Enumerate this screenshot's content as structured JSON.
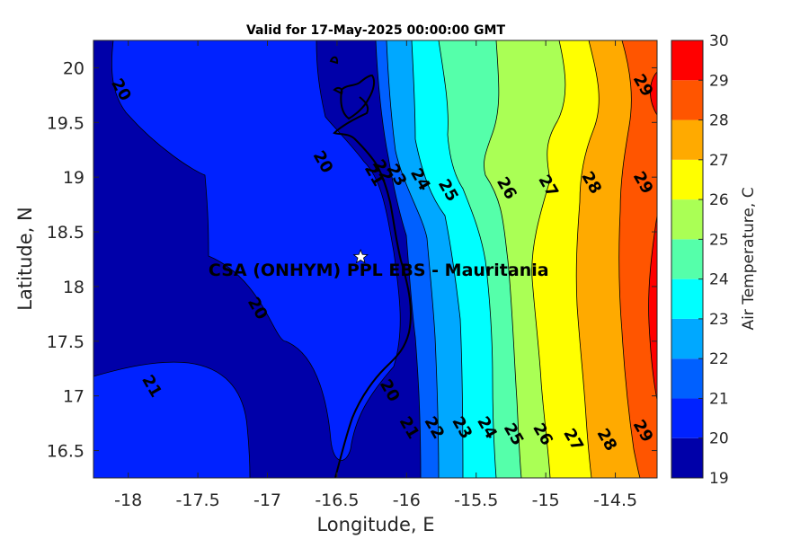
{
  "chart_data": {
    "type": "contour-map",
    "title": "Valid for 17-May-2025 00:00:00 GMT",
    "xlabel": "Longitude, E",
    "ylabel": "Latitude, N",
    "xlim": [
      -18.25,
      -14.2
    ],
    "ylim": [
      16.25,
      20.25
    ],
    "x_ticks": [
      "-18",
      "-17.5",
      "-17",
      "-16.5",
      "-16",
      "-15.5",
      "-15",
      "-14.5"
    ],
    "y_ticks": [
      "20",
      "19.5",
      "19",
      "18.5",
      "18",
      "17.5",
      "17",
      "16.5"
    ],
    "colorbar": {
      "label": "Air Temperature, C",
      "levels": [
        19,
        20,
        21,
        22,
        23,
        24,
        25,
        26,
        27,
        28,
        29,
        30
      ],
      "colors": [
        "#0000a9",
        "#0022ff",
        "#0060ff",
        "#00a8ff",
        "#00ffff",
        "#55ffaa",
        "#aaff55",
        "#ffff00",
        "#ffaa00",
        "#ff5500",
        "#ff0000",
        "#aa0000"
      ]
    },
    "site": {
      "name": "CSA (ONHYM) PPL EBS  - Mauritania",
      "lon": -16.33,
      "lat": 18.27
    },
    "contour_labels": [
      {
        "text": "20",
        "lon": -18.05,
        "lat": 19.8
      },
      {
        "text": "20",
        "lon": -16.6,
        "lat": 19.14
      },
      {
        "text": "20",
        "lon": -17.07,
        "lat": 17.8
      },
      {
        "text": "20",
        "lon": -16.12,
        "lat": 17.05
      },
      {
        "text": "21",
        "lon": -17.83,
        "lat": 17.09
      },
      {
        "text": "21",
        "lon": -16.23,
        "lat": 19.02
      },
      {
        "text": "21",
        "lon": -15.98,
        "lat": 16.71
      },
      {
        "text": "22",
        "lon": -16.17,
        "lat": 19.06
      },
      {
        "text": "22",
        "lon": -15.8,
        "lat": 16.71
      },
      {
        "text": "23",
        "lon": -16.07,
        "lat": 19.02
      },
      {
        "text": "23",
        "lon": -15.6,
        "lat": 16.71
      },
      {
        "text": "24",
        "lon": -15.9,
        "lat": 18.98
      },
      {
        "text": "24",
        "lon": -15.42,
        "lat": 16.71
      },
      {
        "text": "25",
        "lon": -15.7,
        "lat": 18.88
      },
      {
        "text": "25",
        "lon": -15.23,
        "lat": 16.65
      },
      {
        "text": "26",
        "lon": -15.28,
        "lat": 18.9
      },
      {
        "text": "26",
        "lon": -15.02,
        "lat": 16.65
      },
      {
        "text": "27",
        "lon": -14.98,
        "lat": 18.92
      },
      {
        "text": "27",
        "lon": -14.8,
        "lat": 16.6
      },
      {
        "text": "28",
        "lon": -14.67,
        "lat": 18.95
      },
      {
        "text": "28",
        "lon": -14.56,
        "lat": 16.6
      },
      {
        "text": "29",
        "lon": -14.3,
        "lat": 19.84
      },
      {
        "text": "29",
        "lon": -14.3,
        "lat": 18.95
      },
      {
        "text": "29",
        "lon": -14.3,
        "lat": 16.68
      }
    ]
  }
}
